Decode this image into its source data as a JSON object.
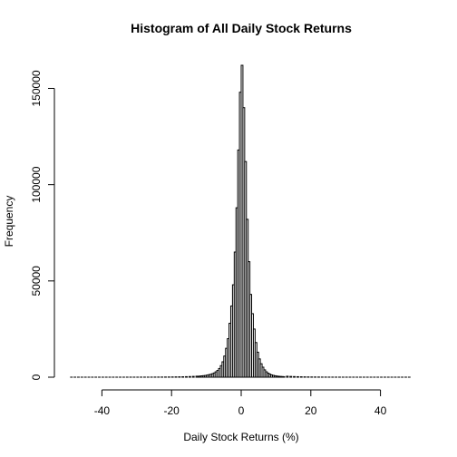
{
  "chart_data": {
    "type": "bar",
    "title": "Histogram of All Daily Stock Returns",
    "xlabel": "Daily Stock Returns (%)",
    "ylabel": "Frequency",
    "xlim": [
      -50,
      50
    ],
    "ylim": [
      0,
      162000
    ],
    "grid": false,
    "legend": "none",
    "x_ticks": [
      -40,
      -20,
      0,
      20,
      40
    ],
    "y_ticks": [
      0,
      50000,
      100000,
      150000
    ],
    "bin_width": 0.5,
    "series": [
      {
        "bins": [
          [
            -49,
            20
          ],
          [
            -48,
            20
          ],
          [
            -47,
            20
          ],
          [
            -46,
            20
          ],
          [
            -45,
            20
          ],
          [
            -44,
            20
          ],
          [
            -43,
            20
          ],
          [
            -42,
            20
          ],
          [
            -41,
            20
          ],
          [
            -40,
            20
          ],
          [
            -39,
            20
          ],
          [
            -38,
            20
          ],
          [
            -37,
            20
          ],
          [
            -36,
            20
          ],
          [
            -35,
            20
          ],
          [
            -34,
            20
          ],
          [
            -33,
            30
          ],
          [
            -32,
            30
          ],
          [
            -31,
            30
          ],
          [
            -30,
            30
          ],
          [
            -29,
            40
          ],
          [
            -28,
            40
          ],
          [
            -27,
            40
          ],
          [
            -26,
            50
          ],
          [
            -25,
            60
          ],
          [
            -24,
            70
          ],
          [
            -23,
            80
          ],
          [
            -22,
            90
          ],
          [
            -21,
            110
          ],
          [
            -20,
            130
          ],
          [
            -19,
            160
          ],
          [
            -18,
            190
          ],
          [
            -17,
            230
          ],
          [
            -16,
            280
          ],
          [
            -15,
            340
          ],
          [
            -14,
            420
          ],
          [
            -13,
            520
          ],
          [
            -12.5,
            500
          ],
          [
            -12,
            600
          ],
          [
            -11.5,
            700
          ],
          [
            -11,
            800
          ],
          [
            -10.5,
            900
          ],
          [
            -10,
            1100
          ],
          [
            -9.5,
            1300
          ],
          [
            -9,
            1500
          ],
          [
            -8.5,
            1800
          ],
          [
            -8,
            2200
          ],
          [
            -7.5,
            2800
          ],
          [
            -7,
            3500
          ],
          [
            -6.5,
            4500
          ],
          [
            -6,
            6000
          ],
          [
            -5.5,
            8000
          ],
          [
            -5,
            11000
          ],
          [
            -4.5,
            15000
          ],
          [
            -4,
            20000
          ],
          [
            -3.5,
            28000
          ],
          [
            -3,
            37000
          ],
          [
            -2.5,
            48000
          ],
          [
            -2,
            65000
          ],
          [
            -1.5,
            88000
          ],
          [
            -1,
            118000
          ],
          [
            -0.5,
            148000
          ],
          [
            0,
            162000
          ],
          [
            0.5,
            140000
          ],
          [
            1,
            112000
          ],
          [
            1.5,
            82000
          ],
          [
            2,
            60000
          ],
          [
            2.5,
            43000
          ],
          [
            3,
            33000
          ],
          [
            3.5,
            25000
          ],
          [
            4,
            18000
          ],
          [
            4.5,
            13000
          ],
          [
            5,
            9500
          ],
          [
            5.5,
            7000
          ],
          [
            6,
            5200
          ],
          [
            6.5,
            3800
          ],
          [
            7,
            2800
          ],
          [
            7.5,
            2100
          ],
          [
            8,
            1600
          ],
          [
            8.5,
            1200
          ],
          [
            9,
            950
          ],
          [
            9.5,
            750
          ],
          [
            10,
            600
          ],
          [
            10.5,
            480
          ],
          [
            11,
            400
          ],
          [
            11.5,
            330
          ],
          [
            12,
            280
          ],
          [
            13,
            500
          ],
          [
            14,
            400
          ],
          [
            15,
            320
          ],
          [
            16,
            260
          ],
          [
            17,
            210
          ],
          [
            18,
            170
          ],
          [
            19,
            140
          ],
          [
            20,
            120
          ],
          [
            21,
            100
          ],
          [
            22,
            85
          ],
          [
            23,
            70
          ],
          [
            24,
            60
          ],
          [
            25,
            50
          ],
          [
            26,
            45
          ],
          [
            27,
            40
          ],
          [
            28,
            35
          ],
          [
            29,
            30
          ],
          [
            30,
            30
          ],
          [
            31,
            25
          ],
          [
            32,
            25
          ],
          [
            33,
            20
          ],
          [
            34,
            20
          ],
          [
            35,
            20
          ],
          [
            36,
            20
          ],
          [
            37,
            20
          ],
          [
            38,
            20
          ],
          [
            39,
            20
          ],
          [
            40,
            20
          ],
          [
            41,
            20
          ],
          [
            42,
            20
          ],
          [
            43,
            20
          ],
          [
            44,
            20
          ],
          [
            45,
            20
          ],
          [
            46,
            20
          ],
          [
            47,
            20
          ],
          [
            48,
            20
          ]
        ]
      }
    ]
  }
}
